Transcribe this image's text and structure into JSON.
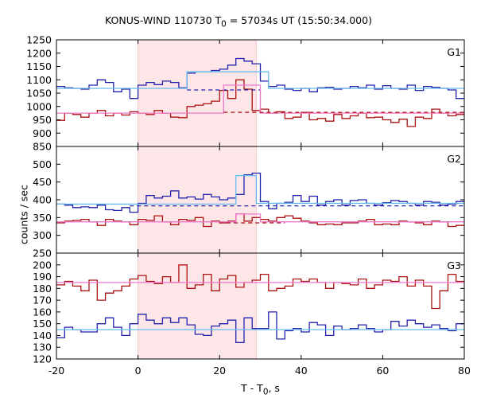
{
  "title": "KONUS-WIND 110730 T",
  "title_sub": "0",
  "title_rest": " = 57034s UT (15:50:34.000)",
  "ylabel": "counts / sec",
  "xlabel": "T - T",
  "xlabel_sub": "0",
  "xlabel_rest": ", s",
  "colors": {
    "blue": "#2222aa",
    "red": "#aa1111",
    "light_blue": "#66bbee",
    "pink": "#ee77cc",
    "shade": "#fde6e8",
    "axis": "#000000"
  },
  "chart_data": [
    {
      "type": "line",
      "panel": "G1",
      "title": "G1",
      "xlim": [
        -20,
        80
      ],
      "ylim": [
        850,
        1250
      ],
      "yticks": [
        850,
        900,
        950,
        1000,
        1050,
        1100,
        1150,
        1200,
        1250
      ],
      "shaded_interval": [
        0,
        29
      ],
      "series": [
        {
          "color": "blue",
          "step": true,
          "x": [
            -20,
            -18,
            -16,
            -14,
            -12,
            -10,
            -8,
            -6,
            -4,
            -2,
            0,
            2,
            4,
            6,
            8,
            10,
            12,
            14,
            16,
            18,
            20,
            22,
            24,
            26,
            28,
            30,
            32,
            34,
            36,
            38,
            40,
            42,
            44,
            46,
            48,
            50,
            52,
            54,
            56,
            58,
            60,
            62,
            64,
            66,
            68,
            70,
            72,
            74,
            76,
            78,
            80
          ],
          "y": [
            1075,
            1070,
            1068,
            1065,
            1080,
            1100,
            1090,
            1055,
            1065,
            1030,
            1080,
            1090,
            1082,
            1095,
            1090,
            1070,
            1125,
            1130,
            1130,
            1135,
            1140,
            1155,
            1180,
            1170,
            1160,
            1095,
            1075,
            1080,
            1065,
            1060,
            1068,
            1055,
            1070,
            1072,
            1065,
            1068,
            1075,
            1070,
            1080,
            1065,
            1078,
            1068,
            1065,
            1080,
            1060,
            1075,
            1072,
            1068,
            1062,
            1030,
            1060
          ]
        },
        {
          "color": "red",
          "step": true,
          "x": [
            -20,
            -18,
            -16,
            -14,
            -12,
            -10,
            -8,
            -6,
            -4,
            -2,
            0,
            2,
            4,
            6,
            8,
            10,
            12,
            14,
            16,
            18,
            20,
            22,
            24,
            26,
            28,
            30,
            32,
            34,
            36,
            38,
            40,
            42,
            44,
            46,
            48,
            50,
            52,
            54,
            56,
            58,
            60,
            62,
            64,
            66,
            68,
            70,
            72,
            74,
            76,
            78,
            80
          ],
          "y": [
            948,
            975,
            970,
            960,
            975,
            985,
            965,
            975,
            968,
            980,
            975,
            970,
            985,
            975,
            960,
            958,
            1000,
            1005,
            1010,
            1020,
            1060,
            1030,
            1100,
            1065,
            985,
            990,
            975,
            980,
            955,
            960,
            978,
            950,
            955,
            945,
            970,
            955,
            965,
            975,
            958,
            960,
            950,
            940,
            952,
            925,
            960,
            955,
            990,
            975,
            965,
            970,
            985
          ]
        },
        {
          "color": "light_blue",
          "step": true,
          "x": [
            -20,
            12,
            32,
            80
          ],
          "y": [
            1068,
            1130,
            1068,
            1068
          ]
        },
        {
          "color": "blue",
          "dashed": true,
          "x": [
            12,
            30
          ],
          "y": [
            1062,
            1062
          ]
        },
        {
          "color": "pink",
          "step": true,
          "x": [
            -20,
            21,
            30,
            80
          ],
          "y": [
            975,
            1080,
            975,
            975
          ]
        },
        {
          "color": "red",
          "dashed": true,
          "x": [
            21,
            80
          ],
          "y": [
            978,
            978
          ]
        }
      ]
    },
    {
      "type": "line",
      "panel": "G2",
      "title": "G2",
      "xlim": [
        -20,
        80
      ],
      "ylim": [
        250,
        550
      ],
      "yticks": [
        250,
        300,
        350,
        400,
        450,
        500
      ],
      "shaded_interval": [
        0,
        29
      ],
      "series": [
        {
          "color": "blue",
          "step": true,
          "x": [
            -20,
            -18,
            -16,
            -14,
            -12,
            -10,
            -8,
            -6,
            -4,
            -2,
            0,
            2,
            4,
            6,
            8,
            10,
            12,
            14,
            16,
            18,
            20,
            22,
            24,
            26,
            28,
            30,
            32,
            34,
            36,
            38,
            40,
            42,
            44,
            46,
            48,
            50,
            52,
            54,
            56,
            58,
            60,
            62,
            64,
            66,
            68,
            70,
            72,
            74,
            76,
            78,
            80
          ],
          "y": [
            388,
            385,
            378,
            380,
            378,
            385,
            372,
            370,
            378,
            365,
            390,
            412,
            405,
            410,
            425,
            405,
            408,
            402,
            415,
            408,
            400,
            405,
            415,
            470,
            475,
            395,
            375,
            390,
            393,
            412,
            395,
            410,
            385,
            395,
            400,
            385,
            398,
            400,
            390,
            385,
            392,
            398,
            395,
            390,
            385,
            395,
            393,
            385,
            388,
            395,
            385
          ]
        },
        {
          "color": "red",
          "step": true,
          "x": [
            -20,
            -18,
            -16,
            -14,
            -12,
            -10,
            -8,
            -6,
            -4,
            -2,
            0,
            2,
            4,
            6,
            8,
            10,
            12,
            14,
            16,
            18,
            20,
            22,
            24,
            26,
            28,
            30,
            32,
            34,
            36,
            38,
            40,
            42,
            44,
            46,
            48,
            50,
            52,
            54,
            56,
            58,
            60,
            62,
            64,
            66,
            68,
            70,
            72,
            74,
            76,
            78,
            80
          ],
          "y": [
            335,
            340,
            342,
            345,
            338,
            328,
            345,
            340,
            338,
            330,
            345,
            342,
            355,
            338,
            330,
            345,
            342,
            350,
            325,
            340,
            335,
            340,
            360,
            340,
            350,
            345,
            340,
            350,
            355,
            348,
            340,
            335,
            330,
            332,
            330,
            335,
            335,
            340,
            345,
            330,
            332,
            330,
            340,
            338,
            335,
            330,
            340,
            338,
            325,
            328,
            322
          ]
        },
        {
          "color": "light_blue",
          "step": true,
          "x": [
            -20,
            24,
            29,
            80
          ],
          "y": [
            388,
            468,
            390,
            390
          ]
        },
        {
          "color": "blue",
          "dashed": true,
          "x": [
            -2,
            80
          ],
          "y": [
            383,
            383
          ]
        },
        {
          "color": "pink",
          "step": true,
          "x": [
            -20,
            24,
            30,
            80
          ],
          "y": [
            338,
            360,
            338,
            338
          ]
        },
        {
          "color": "red",
          "dashed": true,
          "x": [
            20,
            36
          ],
          "y": [
            335,
            335
          ]
        }
      ]
    },
    {
      "type": "line",
      "panel": "G3",
      "title": "G3",
      "xlim": [
        -20,
        80
      ],
      "ylim": [
        120,
        210
      ],
      "yticks": [
        120,
        130,
        140,
        150,
        160,
        170,
        180,
        190,
        200
      ],
      "shaded_interval": [
        0,
        29
      ],
      "series": [
        {
          "color": "red",
          "step": true,
          "x": [
            -20,
            -18,
            -16,
            -14,
            -12,
            -10,
            -8,
            -6,
            -4,
            -2,
            0,
            2,
            4,
            6,
            8,
            10,
            12,
            14,
            16,
            18,
            20,
            22,
            24,
            26,
            28,
            30,
            32,
            34,
            36,
            38,
            40,
            42,
            44,
            46,
            48,
            50,
            52,
            54,
            56,
            58,
            60,
            62,
            64,
            66,
            68,
            70,
            72,
            74,
            76,
            78,
            80
          ],
          "y": [
            183,
            186,
            182,
            178,
            187,
            170,
            176,
            178,
            182,
            188,
            191,
            186,
            184,
            190,
            185,
            200,
            180,
            183,
            192,
            178,
            188,
            191,
            181,
            185,
            187,
            192,
            178,
            180,
            182,
            188,
            186,
            188,
            185,
            180,
            185,
            184,
            183,
            188,
            180,
            183,
            187,
            186,
            190,
            182,
            187,
            182,
            163,
            178,
            192,
            186,
            185
          ]
        },
        {
          "color": "blue",
          "step": true,
          "x": [
            -20,
            -18,
            -16,
            -14,
            -12,
            -10,
            -8,
            -6,
            -4,
            -2,
            0,
            2,
            4,
            6,
            8,
            10,
            12,
            14,
            16,
            18,
            20,
            22,
            24,
            26,
            28,
            30,
            32,
            34,
            36,
            38,
            40,
            42,
            44,
            46,
            48,
            50,
            52,
            54,
            56,
            58,
            60,
            62,
            64,
            66,
            68,
            70,
            72,
            74,
            76,
            78,
            80
          ],
          "y": [
            138,
            147,
            145,
            143,
            143,
            150,
            155,
            147,
            140,
            150,
            158,
            153,
            150,
            155,
            151,
            155,
            149,
            141,
            140,
            148,
            150,
            153,
            134,
            155,
            146,
            146,
            160,
            137,
            144,
            146,
            143,
            151,
            149,
            140,
            148,
            145,
            146,
            149,
            146,
            143,
            145,
            152,
            148,
            153,
            150,
            147,
            149,
            146,
            144,
            150,
            146
          ]
        },
        {
          "color": "pink",
          "x": [
            -20,
            80
          ],
          "y": [
            185,
            185
          ]
        },
        {
          "color": "light_blue",
          "x": [
            -20,
            80
          ],
          "y": [
            145,
            145
          ]
        }
      ]
    }
  ],
  "xaxis": {
    "xlim": [
      -20,
      80
    ],
    "xticks": [
      -20,
      0,
      20,
      40,
      60,
      80
    ]
  }
}
